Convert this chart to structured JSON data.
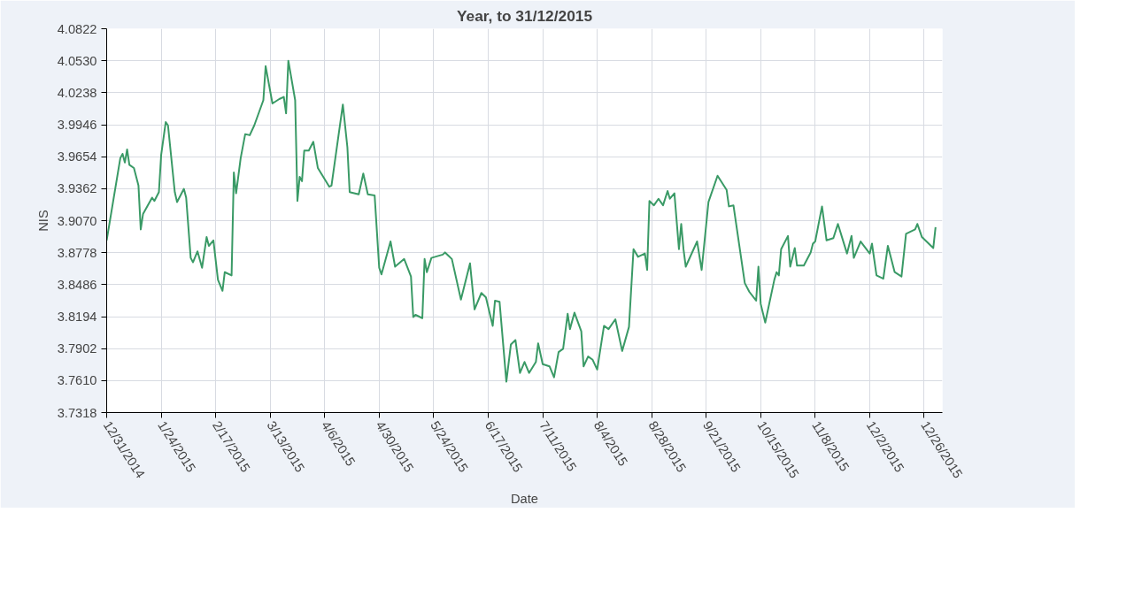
{
  "chart_data": {
    "type": "line",
    "title": "Year, to 31/12/2015",
    "xlabel": "Date",
    "ylabel": "NIS",
    "x": [
      "2014-12-31",
      "2015-01-06",
      "2015-01-07",
      "2015-01-08",
      "2015-01-09",
      "2015-01-10",
      "2015-01-12",
      "2015-01-14",
      "2015-01-15",
      "2015-01-16",
      "2015-01-20",
      "2015-01-21",
      "2015-01-23",
      "2015-01-24",
      "2015-01-26",
      "2015-01-27",
      "2015-01-30",
      "2015-01-31",
      "2015-02-03",
      "2015-02-04",
      "2015-02-06",
      "2015-02-07",
      "2015-02-09",
      "2015-02-11",
      "2015-02-13",
      "2015-02-14",
      "2015-02-16",
      "2015-02-18",
      "2015-02-20",
      "2015-02-21",
      "2015-02-24",
      "2015-02-25",
      "2015-02-26",
      "2015-02-28",
      "2015-03-02",
      "2015-03-04",
      "2015-03-06",
      "2015-03-10",
      "2015-03-11",
      "2015-03-14",
      "2015-03-17",
      "2015-03-19",
      "2015-03-20",
      "2015-03-21",
      "2015-03-24",
      "2015-03-25",
      "2015-03-26",
      "2015-03-27",
      "2015-03-28",
      "2015-03-30",
      "2015-04-01",
      "2015-04-03",
      "2015-04-08",
      "2015-04-09",
      "2015-04-14",
      "2015-04-16",
      "2015-04-17",
      "2015-04-21",
      "2015-04-23",
      "2015-04-25",
      "2015-04-28",
      "2015-04-30",
      "2015-05-01",
      "2015-05-05",
      "2015-05-07",
      "2015-05-11",
      "2015-05-14",
      "2015-05-15",
      "2015-05-16",
      "2015-05-19",
      "2015-05-20",
      "2015-05-21",
      "2015-05-23",
      "2015-05-28",
      "2015-05-29",
      "2015-06-01",
      "2015-06-05",
      "2015-06-09",
      "2015-06-11",
      "2015-06-14",
      "2015-06-16",
      "2015-06-19",
      "2015-06-20",
      "2015-06-22",
      "2015-06-25",
      "2015-06-27",
      "2015-06-29",
      "2015-07-01",
      "2015-07-03",
      "2015-07-05",
      "2015-07-08",
      "2015-07-09",
      "2015-07-11",
      "2015-07-14",
      "2015-07-16",
      "2015-07-18",
      "2015-07-20",
      "2015-07-22",
      "2015-07-23",
      "2015-07-25",
      "2015-07-28",
      "2015-07-29",
      "2015-07-31",
      "2015-08-02",
      "2015-08-04",
      "2015-08-07",
      "2015-08-09",
      "2015-08-12",
      "2015-08-15",
      "2015-08-18",
      "2015-08-20",
      "2015-08-22",
      "2015-08-25",
      "2015-08-26",
      "2015-08-27",
      "2015-08-29",
      "2015-08-31",
      "2015-09-02",
      "2015-09-04",
      "2015-09-05",
      "2015-09-07",
      "2015-09-09",
      "2015-09-10",
      "2015-09-11",
      "2015-09-12",
      "2015-09-17",
      "2015-09-19",
      "2015-09-22",
      "2015-09-26",
      "2015-09-30",
      "2015-10-01",
      "2015-10-03",
      "2015-10-08",
      "2015-10-10",
      "2015-10-13",
      "2015-10-14",
      "2015-10-15",
      "2015-10-17",
      "2015-10-21",
      "2015-10-22",
      "2015-10-23",
      "2015-10-24",
      "2015-10-27",
      "2015-10-28",
      "2015-10-30",
      "2015-10-31",
      "2015-11-03",
      "2015-11-06",
      "2015-11-07",
      "2015-11-08",
      "2015-11-11",
      "2015-11-13",
      "2015-11-16",
      "2015-11-18",
      "2015-11-22",
      "2015-11-24",
      "2015-11-25",
      "2015-11-28",
      "2015-12-02",
      "2015-12-03",
      "2015-12-05",
      "2015-12-08",
      "2015-12-10",
      "2015-12-13",
      "2015-12-16",
      "2015-12-18",
      "2015-12-22",
      "2015-12-23",
      "2015-12-25",
      "2015-12-30",
      "2015-12-31"
    ],
    "series": [
      {
        "color": "#3a9a66",
        "values": [
          3.889,
          3.964,
          3.968,
          3.96,
          3.972,
          3.958,
          3.955,
          3.939,
          3.899,
          3.913,
          3.928,
          3.925,
          3.933,
          3.967,
          3.997,
          3.994,
          3.933,
          3.924,
          3.936,
          3.928,
          3.873,
          3.869,
          3.879,
          3.864,
          3.892,
          3.884,
          3.889,
          3.853,
          3.843,
          3.86,
          3.857,
          3.951,
          3.932,
          3.964,
          3.986,
          3.985,
          3.994,
          4.017,
          4.048,
          4.014,
          4.018,
          4.02,
          4.005,
          4.053,
          4.017,
          3.925,
          3.947,
          3.943,
          3.971,
          3.971,
          3.979,
          3.955,
          3.938,
          3.939,
          4.013,
          3.974,
          3.933,
          3.931,
          3.95,
          3.931,
          3.93,
          3.864,
          3.858,
          3.888,
          3.865,
          3.872,
          3.856,
          3.819,
          3.821,
          3.818,
          3.872,
          3.86,
          3.873,
          3.876,
          3.878,
          3.872,
          3.835,
          3.868,
          3.826,
          3.841,
          3.837,
          3.811,
          3.834,
          3.833,
          3.76,
          3.794,
          3.798,
          3.768,
          3.778,
          3.768,
          3.778,
          3.795,
          3.776,
          3.774,
          3.764,
          3.787,
          3.79,
          3.822,
          3.808,
          3.823,
          3.806,
          3.774,
          3.783,
          3.78,
          3.771,
          3.811,
          3.808,
          3.817,
          3.788,
          3.81,
          3.881,
          3.874,
          3.877,
          3.862,
          3.925,
          3.921,
          3.927,
          3.921,
          3.934,
          3.927,
          3.932,
          3.881,
          3.904,
          3.881,
          3.865,
          3.888,
          3.862,
          3.924,
          3.948,
          3.935,
          3.92,
          3.921,
          3.85,
          3.842,
          3.834,
          3.865,
          3.831,
          3.814,
          3.853,
          3.86,
          3.857,
          3.881,
          3.893,
          3.865,
          3.882,
          3.866,
          3.866,
          3.878,
          3.886,
          3.888,
          3.92,
          3.889,
          3.891,
          3.904,
          3.877,
          3.893,
          3.873,
          3.888,
          3.877,
          3.886,
          3.857,
          3.854,
          3.884,
          3.86,
          3.856,
          3.895,
          3.899,
          3.904,
          3.892,
          3.882,
          3.901
        ]
      }
    ],
    "xlim": [
      "2014-12-31",
      "2016-01-03"
    ],
    "xticks": [
      {
        "value": "2014-12-31",
        "label": "12/31/2014"
      },
      {
        "value": "2015-01-24",
        "label": "1/24/2015"
      },
      {
        "value": "2015-02-17",
        "label": "2/17/2015"
      },
      {
        "value": "2015-03-13",
        "label": "3/13/2015"
      },
      {
        "value": "2015-04-06",
        "label": "4/6/2015"
      },
      {
        "value": "2015-04-30",
        "label": "4/30/2015"
      },
      {
        "value": "2015-05-24",
        "label": "5/24/2015"
      },
      {
        "value": "2015-06-17",
        "label": "6/17/2015"
      },
      {
        "value": "2015-07-11",
        "label": "7/11/2015"
      },
      {
        "value": "2015-08-04",
        "label": "8/4/2015"
      },
      {
        "value": "2015-08-28",
        "label": "8/28/2015"
      },
      {
        "value": "2015-09-21",
        "label": "9/21/2015"
      },
      {
        "value": "2015-10-15",
        "label": "10/15/2015"
      },
      {
        "value": "2015-11-08",
        "label": "11/8/2015"
      },
      {
        "value": "2015-12-02",
        "label": "12/2/2015"
      },
      {
        "value": "2015-12-26",
        "label": "12/26/2015"
      }
    ],
    "ylim": [
      3.7318,
      4.0822
    ],
    "yticks": [
      {
        "value": 3.7318,
        "label": "3.7318"
      },
      {
        "value": 3.761,
        "label": "3.7610"
      },
      {
        "value": 3.7902,
        "label": "3.7902"
      },
      {
        "value": 3.8194,
        "label": "3.8194"
      },
      {
        "value": 3.8486,
        "label": "3.8486"
      },
      {
        "value": 3.8778,
        "label": "3.8778"
      },
      {
        "value": 3.907,
        "label": "3.9070"
      },
      {
        "value": 3.9362,
        "label": "3.9362"
      },
      {
        "value": 3.9654,
        "label": "3.9654"
      },
      {
        "value": 3.9946,
        "label": "3.9946"
      },
      {
        "value": 4.0238,
        "label": "4.0238"
      },
      {
        "value": 4.053,
        "label": "4.0530"
      },
      {
        "value": 4.0822,
        "label": "4.0822"
      }
    ],
    "grid": true
  }
}
